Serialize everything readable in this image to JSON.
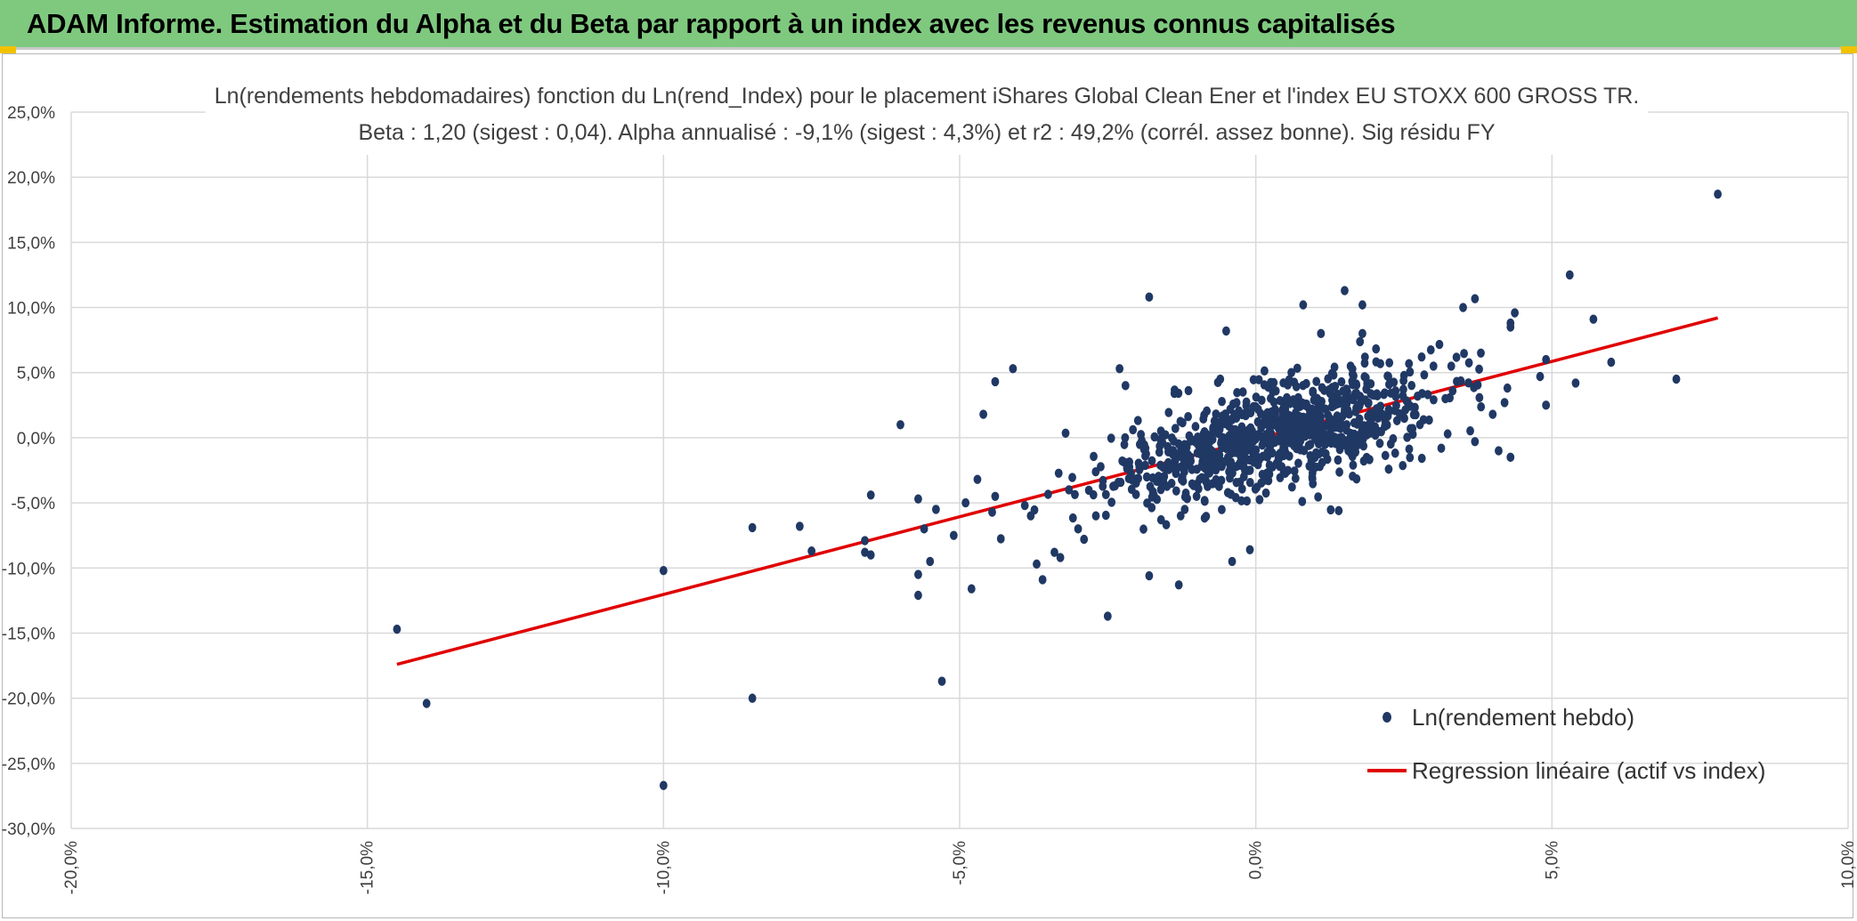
{
  "header": {
    "title": "ADAM Informe. Estimation du Alpha et du Beta par rapport à un index avec les revenus connus capitalisés"
  },
  "colors": {
    "banner": "#7fc97f",
    "points": "#203864",
    "regression": "#e00000",
    "grid": "#d9d9d9"
  },
  "chart_data": {
    "type": "scatter",
    "title": "Ln(rendements hebdomadaires) fonction du Ln(rend_Index) pour le placement iShares Global Clean Ener et l'index EU STOXX 600 GROSS TR.",
    "subtitle": "Beta : 1,20 (sigest : 0,04). Alpha annualisé : -9,1% (sigest : 4,3%) et r2 : 49,2% (corrél. assez bonne). Sig résidu FY",
    "xlabel": "",
    "ylabel": "",
    "xlim": [
      -0.2,
      0.1
    ],
    "ylim": [
      -0.3,
      0.25
    ],
    "x_ticks": [
      -0.2,
      -0.15,
      -0.1,
      -0.05,
      0.0,
      0.05,
      0.1
    ],
    "y_ticks": [
      0.25,
      0.2,
      0.15,
      0.1,
      0.05,
      0.0,
      -0.05,
      -0.1,
      -0.15,
      -0.2,
      -0.25,
      -0.3
    ],
    "x_tick_labels": [
      "-20,0%",
      "-15,0%",
      "-10,0%",
      "-5,0%",
      "0,0%",
      "5,0%",
      "10,0%"
    ],
    "y_tick_labels": [
      "25,0%",
      "20,0%",
      "15,0%",
      "10,0%",
      "5,0%",
      "0,0%",
      "-5,0%",
      "-10,0%",
      "-15,0%",
      "-20,0%",
      "-25,0%",
      "-30,0%"
    ],
    "grid": true,
    "legend_position": "bottom-right",
    "series": [
      {
        "name": "Ln(rendement hebdo)",
        "kind": "scatter",
        "color": "#203864",
        "points": [
          [
            0.078,
            0.187
          ],
          [
            0.053,
            0.125
          ],
          [
            0.057,
            0.091
          ],
          [
            0.06,
            0.058
          ],
          [
            0.071,
            0.045
          ],
          [
            0.054,
            0.042
          ],
          [
            0.049,
            0.06
          ],
          [
            0.048,
            0.047
          ],
          [
            0.049,
            0.025
          ],
          [
            0.043,
            0.088
          ],
          [
            0.043,
            0.085
          ],
          [
            0.043,
            -0.015
          ],
          [
            0.035,
            0.1
          ],
          [
            0.038,
            0.065
          ],
          [
            0.042,
            0.027
          ],
          [
            0.04,
            0.018
          ],
          [
            0.041,
            -0.01
          ],
          [
            0.037,
            -0.003
          ],
          [
            0.033,
            0.055
          ],
          [
            0.032,
            0.03
          ],
          [
            -0.145,
            -0.147
          ],
          [
            -0.14,
            -0.204
          ],
          [
            -0.1,
            -0.102
          ],
          [
            -0.1,
            -0.267
          ],
          [
            -0.085,
            -0.2
          ],
          [
            -0.085,
            -0.069
          ],
          [
            -0.077,
            -0.068
          ],
          [
            -0.075,
            -0.087
          ],
          [
            -0.066,
            -0.079
          ],
          [
            -0.066,
            -0.088
          ],
          [
            -0.065,
            -0.09
          ],
          [
            -0.065,
            -0.044
          ],
          [
            -0.06,
            0.01
          ],
          [
            -0.057,
            -0.047
          ],
          [
            -0.057,
            -0.105
          ],
          [
            -0.057,
            -0.121
          ],
          [
            -0.056,
            -0.07
          ],
          [
            -0.055,
            -0.095
          ],
          [
            -0.054,
            -0.055
          ],
          [
            -0.053,
            -0.187
          ],
          [
            -0.051,
            -0.075
          ],
          [
            -0.049,
            -0.05
          ],
          [
            -0.048,
            -0.116
          ],
          [
            -0.047,
            -0.032
          ],
          [
            -0.046,
            0.018
          ],
          [
            -0.044,
            -0.045
          ],
          [
            -0.044,
            0.043
          ],
          [
            -0.041,
            0.053
          ],
          [
            -0.039,
            -0.052
          ],
          [
            -0.038,
            -0.06
          ],
          [
            -0.037,
            -0.097
          ],
          [
            -0.036,
            -0.109
          ],
          [
            -0.034,
            -0.088
          ],
          [
            -0.033,
            -0.092
          ],
          [
            -0.03,
            -0.07
          ],
          [
            -0.029,
            -0.078
          ],
          [
            -0.027,
            -0.06
          ],
          [
            -0.025,
            -0.137
          ],
          [
            -0.023,
            0.053
          ],
          [
            -0.022,
            0.04
          ],
          [
            -0.018,
            -0.106
          ],
          [
            -0.018,
            0.108
          ],
          [
            -0.016,
            -0.063
          ],
          [
            -0.013,
            -0.113
          ],
          [
            -0.012,
            -0.055
          ],
          [
            -0.01,
            -0.045
          ],
          [
            -0.006,
            0.045
          ],
          [
            -0.005,
            0.082
          ],
          [
            -0.004,
            -0.095
          ],
          [
            -0.001,
            -0.086
          ],
          [
            0.008,
            0.102
          ],
          [
            0.011,
            0.08
          ],
          [
            0.015,
            0.113
          ],
          [
            0.018,
            0.102
          ],
          [
            0.018,
            0.08
          ],
          [
            0.014,
            -0.056
          ],
          [
            0.028,
            0.062
          ],
          [
            0.03,
            0.055
          ],
          [
            0.016,
            0.055
          ],
          [
            0.006,
            0.05
          ]
        ]
      },
      {
        "name": "Regression linéaire (actif vs index)",
        "kind": "line",
        "color": "#e00000",
        "points": [
          [
            -0.145,
            -0.174
          ],
          [
            0.078,
            0.092
          ]
        ]
      }
    ]
  }
}
